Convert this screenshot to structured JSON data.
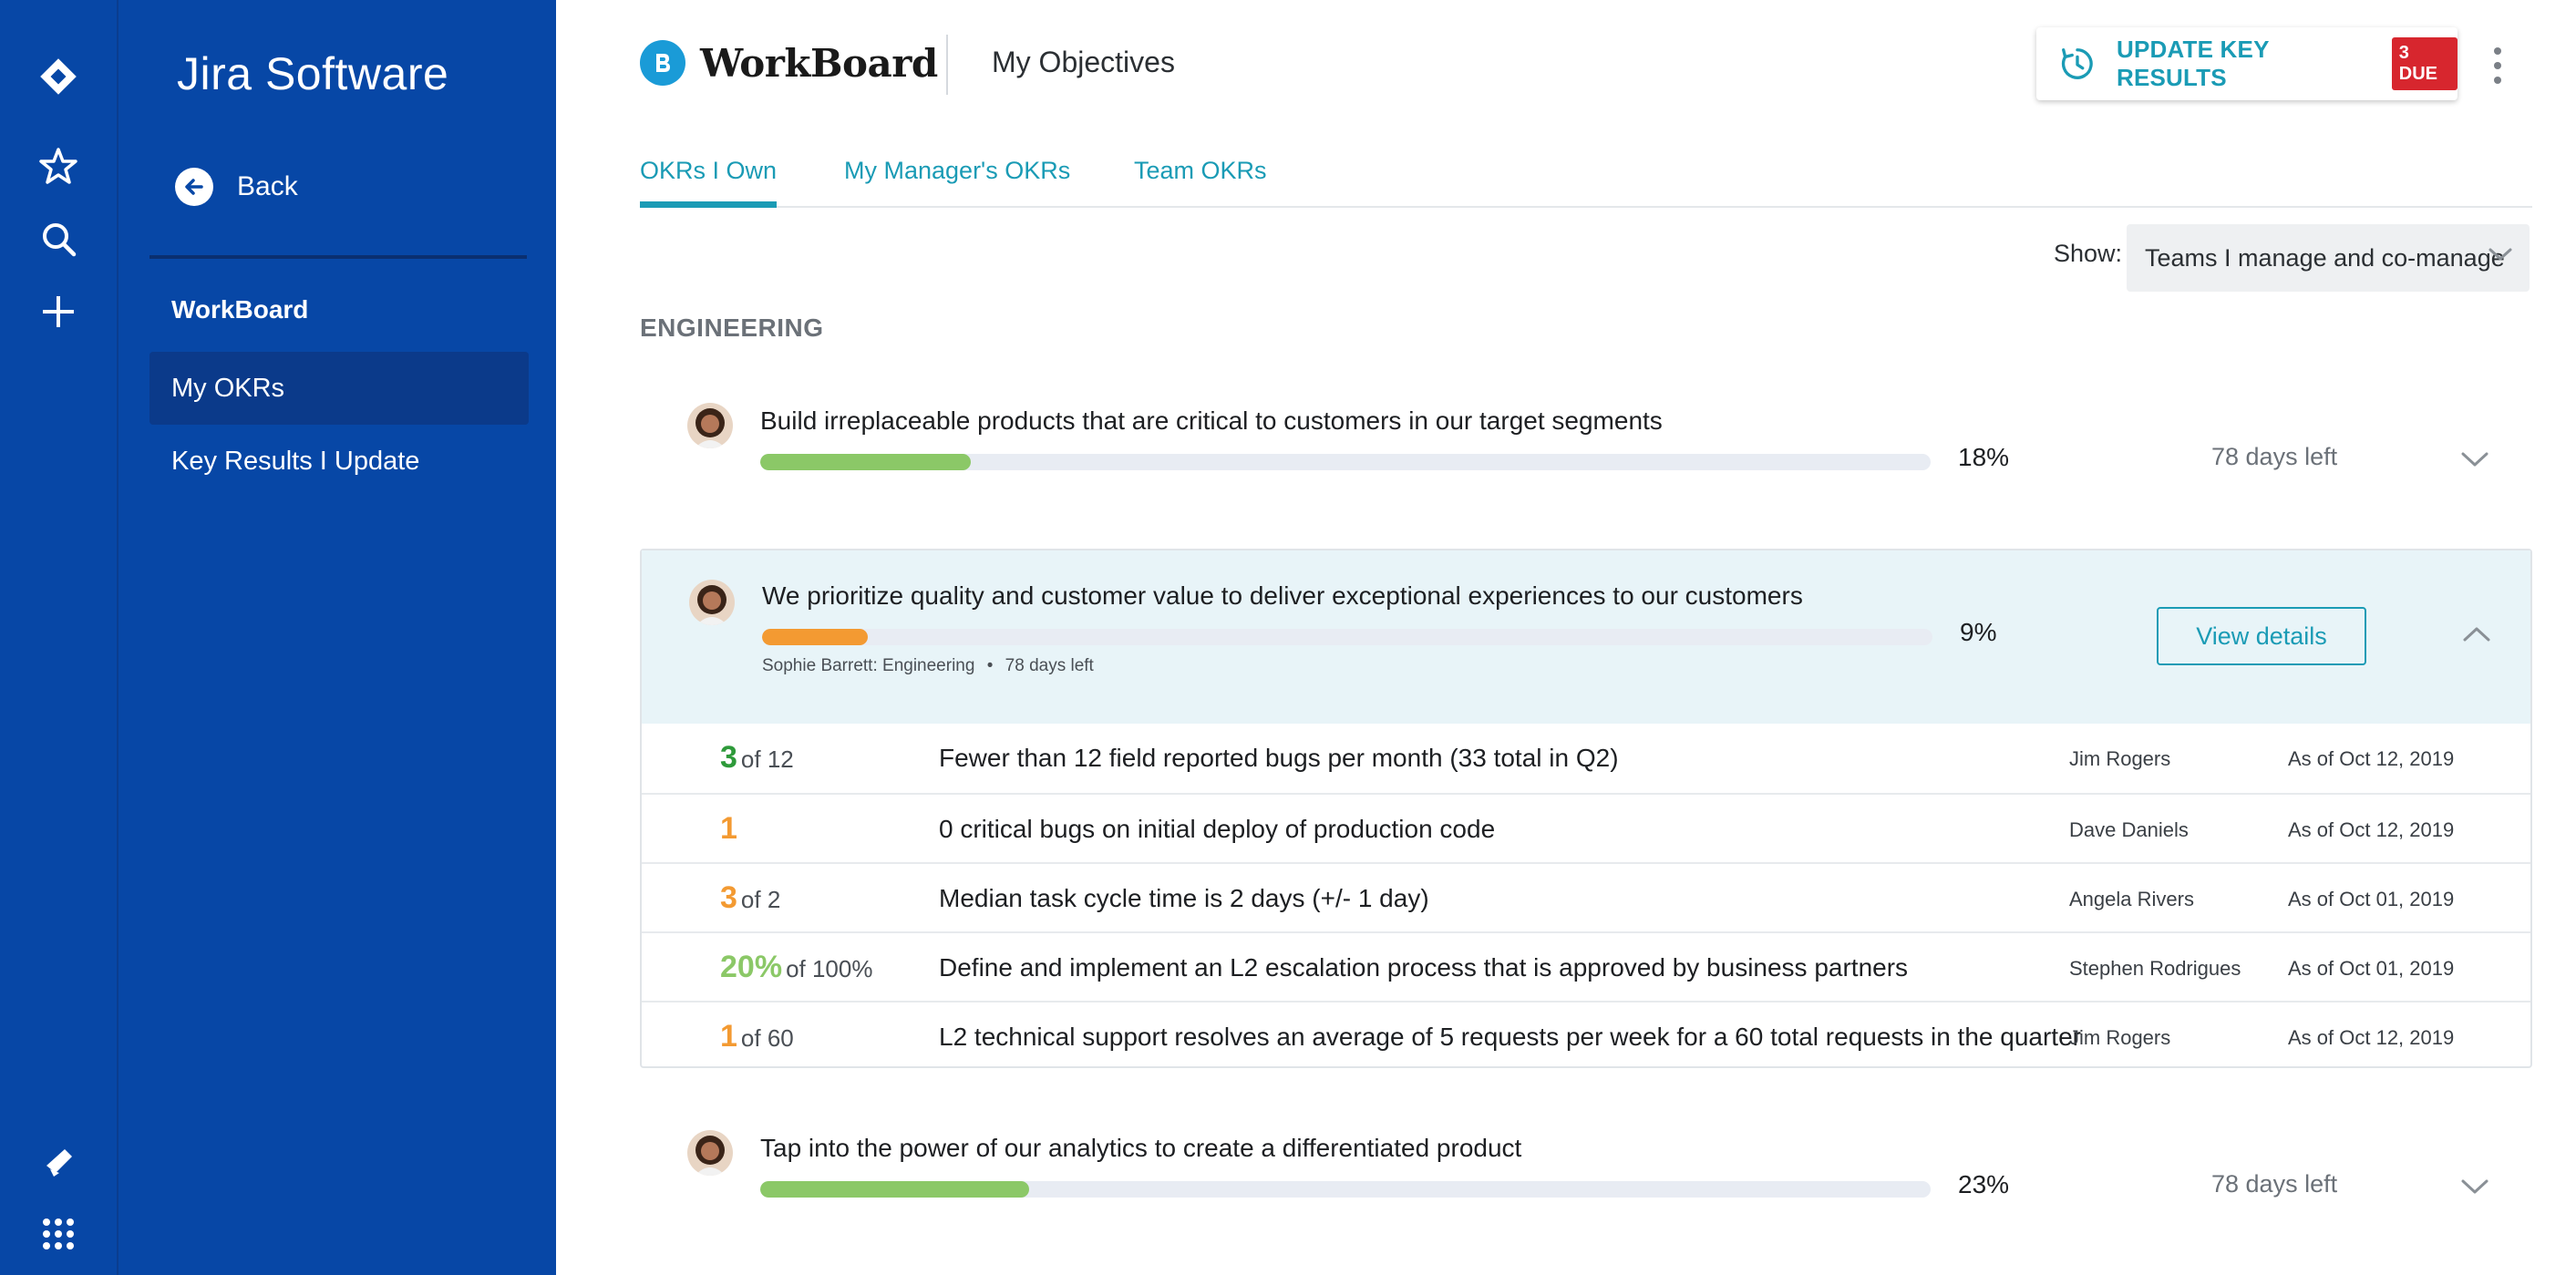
{
  "sidebar": {
    "product_name": "Jira Software",
    "back_label": "Back",
    "section_title": "WorkBoard",
    "items": [
      {
        "label": "My OKRs",
        "active": true
      },
      {
        "label": "Key Results I Update",
        "active": false
      }
    ]
  },
  "header": {
    "brand": "WorkBoard",
    "title": "My Objectives",
    "update_button": "UPDATE KEY RESULTS",
    "due_badge": "3 DUE"
  },
  "tabs": [
    {
      "label": "OKRs I Own",
      "active": true
    },
    {
      "label": "My Manager's OKRs",
      "active": false
    },
    {
      "label": "Team OKRs",
      "active": false
    }
  ],
  "filter": {
    "label": "Show:",
    "value": "Teams I manage and co-manage"
  },
  "group": "ENGINEERING",
  "objectives": [
    {
      "title": "Build irreplaceable products that are critical to customers in our target segments",
      "percent_label": "18%",
      "progress": 0.18,
      "color": "#8bc867",
      "days_left": "78 days left"
    },
    {
      "title": "We prioritize quality and customer value to deliver exceptional experiences to our customers",
      "percent_label": "9%",
      "progress": 0.09,
      "color": "#f39a32",
      "meta_owner": "Sophie Barrett: Engineering",
      "meta_days": "78 days left",
      "view_details": "View details",
      "key_results": [
        {
          "value": "3",
          "of": "of 12",
          "value_color": "#2e9a3a",
          "text": "Fewer than 12 field reported bugs per month (33 total in Q2)",
          "owner": "Jim Rogers",
          "date": "As of Oct 12, 2019"
        },
        {
          "value": "1",
          "of": "",
          "value_color": "#f39a32",
          "text": "0 critical bugs on initial deploy of production code",
          "owner": "Dave Daniels",
          "date": "As of Oct 12, 2019"
        },
        {
          "value": "3",
          "of": "of 2",
          "value_color": "#f39a32",
          "text": "Median task cycle time is 2 days (+/- 1 day)",
          "owner": "Angela Rivers",
          "date": "As of Oct 01, 2019"
        },
        {
          "value": "20%",
          "of": "of 100%",
          "value_color": "#8bc867",
          "text": "Define and implement an L2 escalation process that is approved by business partners",
          "owner": "Stephen Rodrigues",
          "date": "As of Oct 01, 2019"
        },
        {
          "value": "1",
          "of": "of 60",
          "value_color": "#f39a32",
          "text": "L2 technical support resolves an average of 5 requests per week for a 60 total requests in the quarter",
          "owner": "Jim Rogers",
          "date": "As of Oct 12, 2019"
        }
      ]
    },
    {
      "title": "Tap into the power of our analytics to create a differentiated product",
      "percent_label": "23%",
      "progress": 0.23,
      "color": "#8bc867",
      "days_left": "78 days left"
    }
  ],
  "colors": {
    "rail": "#0747a6",
    "accent": "#1a9bb5",
    "due_badge": "#d7262e",
    "expanded_bg": "#e8f4f8"
  },
  "icons": {
    "rail_top": [
      "jira-logo-icon",
      "star-icon",
      "search-icon",
      "plus-icon"
    ],
    "rail_bottom": [
      "megaphone-icon",
      "app-grid-icon"
    ]
  }
}
